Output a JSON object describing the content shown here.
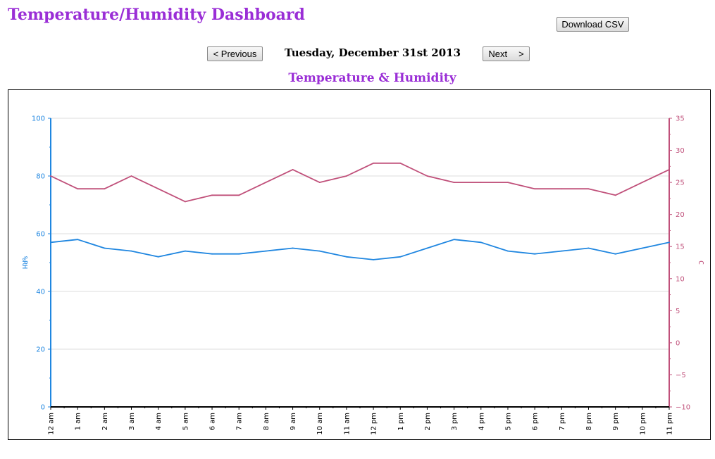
{
  "header": {
    "title": "Temperature/Humidity Dashboard",
    "download_label": "Download CSV"
  },
  "nav": {
    "previous_label": "< Previous",
    "next_label": "Next",
    "next_arrow": ">",
    "date": "Tuesday, December 31st 2013"
  },
  "chart_title": "Temperature & Humidity",
  "colors": {
    "humidity": "#1f86e0",
    "temperature": "#c0507a",
    "title": "#9a2ed6"
  },
  "chart_data": {
    "type": "line",
    "title": "Temperature & Humidity",
    "x": [
      "12 am",
      "1 am",
      "2 am",
      "3 am",
      "4 am",
      "5 am",
      "6 am",
      "7 am",
      "8 am",
      "9 am",
      "10 am",
      "11 am",
      "12 pm",
      "1 pm",
      "2 pm",
      "3 pm",
      "4 pm",
      "5 pm",
      "6 pm",
      "7 pm",
      "8 pm",
      "9 pm",
      "10 pm",
      "11 pm"
    ],
    "series": [
      {
        "axis": "left",
        "values": [
          57,
          58,
          55,
          54,
          52,
          54,
          53,
          53,
          54,
          55,
          54,
          52,
          51,
          52,
          55,
          58,
          57,
          54,
          53,
          54,
          55,
          53,
          55,
          57
        ]
      },
      {
        "axis": "right",
        "values": [
          26,
          24,
          24,
          26,
          24,
          22,
          23,
          23,
          25,
          27,
          25,
          26,
          28,
          28,
          26,
          25,
          25,
          25,
          24,
          24,
          24,
          23,
          25,
          27
        ]
      }
    ],
    "y_left": {
      "label": "%RH",
      "ylim": [
        0,
        100
      ],
      "ticks": [
        0,
        20,
        40,
        60,
        80,
        100
      ]
    },
    "y_right": {
      "label": "C",
      "ylim": [
        -10,
        35
      ],
      "ticks": [
        -10,
        -5,
        0,
        5,
        10,
        15,
        20,
        25,
        30,
        35
      ]
    },
    "grid": true
  }
}
